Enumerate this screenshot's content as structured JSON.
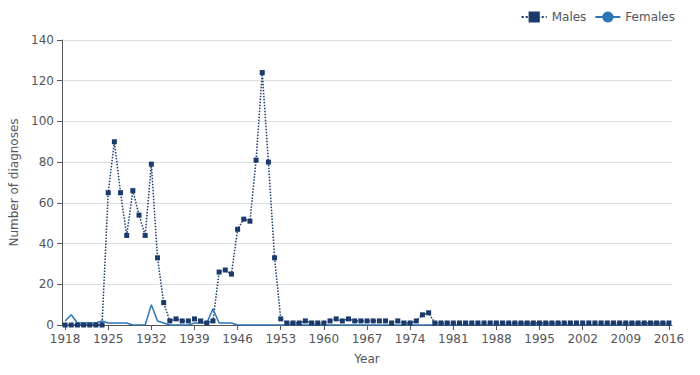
{
  "chart_data": {
    "type": "line",
    "xlabel": "Year",
    "ylabel": "Number of diagnoses",
    "x": [
      1918,
      1919,
      1920,
      1921,
      1922,
      1923,
      1924,
      1925,
      1926,
      1927,
      1928,
      1929,
      1930,
      1931,
      1932,
      1933,
      1934,
      1935,
      1936,
      1937,
      1938,
      1939,
      1940,
      1941,
      1942,
      1943,
      1944,
      1945,
      1946,
      1947,
      1948,
      1949,
      1950,
      1951,
      1952,
      1953,
      1954,
      1955,
      1956,
      1957,
      1958,
      1959,
      1960,
      1961,
      1962,
      1963,
      1964,
      1965,
      1966,
      1967,
      1968,
      1969,
      1970,
      1971,
      1972,
      1973,
      1974,
      1975,
      1976,
      1977,
      1978,
      1979,
      1980,
      1981,
      1982,
      1983,
      1984,
      1985,
      1986,
      1987,
      1988,
      1989,
      1990,
      1991,
      1992,
      1993,
      1994,
      1995,
      1996,
      1997,
      1998,
      1999,
      2000,
      2001,
      2002,
      2003,
      2004,
      2005,
      2006,
      2007,
      2008,
      2009,
      2010,
      2011,
      2012,
      2013,
      2014,
      2015,
      2016
    ],
    "series": [
      {
        "name": "Males",
        "color": "#1a3a6b",
        "line_style": "dotted",
        "marker": "square",
        "values": [
          0,
          0,
          0,
          0,
          0,
          0,
          0,
          65,
          90,
          65,
          44,
          66,
          54,
          44,
          79,
          33,
          11,
          2,
          3,
          2,
          2,
          3,
          2,
          1,
          2,
          26,
          27,
          25,
          47,
          52,
          51,
          81,
          124,
          80,
          33,
          3,
          1,
          1,
          1,
          2,
          1,
          1,
          1,
          2,
          3,
          2,
          3,
          2,
          2,
          2,
          2,
          2,
          2,
          1,
          2,
          1,
          1,
          2,
          5,
          6,
          1,
          1,
          1,
          1,
          1,
          1,
          1,
          1,
          1,
          1,
          1,
          1,
          1,
          1,
          1,
          1,
          1,
          1,
          1,
          1,
          1,
          1,
          1,
          1,
          1,
          1,
          1,
          1,
          1,
          1,
          1,
          1,
          1,
          1,
          1,
          1,
          1,
          1,
          1
        ]
      },
      {
        "name": "Females",
        "color": "#2e75b6",
        "line_style": "solid",
        "marker": "none",
        "values": [
          2,
          5,
          1,
          1,
          1,
          1,
          2,
          1,
          1,
          1,
          1,
          0,
          0,
          0,
          10,
          2,
          1,
          0,
          0,
          0,
          0,
          1,
          1,
          1,
          8,
          1,
          1,
          1,
          0,
          0,
          0,
          0,
          0,
          0,
          0,
          0,
          0,
          0,
          0,
          0,
          0,
          0,
          0,
          0,
          0,
          0,
          0,
          0,
          0,
          0,
          0,
          0,
          0,
          0,
          0,
          0,
          0,
          0,
          0,
          0,
          0,
          0,
          0,
          0,
          0,
          0,
          0,
          0,
          0,
          0,
          0,
          0,
          0,
          0,
          0,
          0,
          0,
          0,
          0,
          0,
          0,
          0,
          0,
          0,
          0,
          0,
          0,
          0,
          0,
          0,
          0,
          0,
          0,
          0,
          0,
          0,
          0,
          0,
          0
        ]
      }
    ],
    "xlim": [
      1917.5,
      2016.5
    ],
    "xticks": [
      1918,
      1925,
      1932,
      1939,
      1946,
      1953,
      1960,
      1967,
      1974,
      1981,
      1988,
      1995,
      2002,
      2009,
      2016
    ],
    "ylim": [
      0,
      140
    ],
    "yticks": [
      0,
      20,
      40,
      60,
      80,
      100,
      120,
      140
    ],
    "grid": true,
    "legend": "upper right"
  }
}
